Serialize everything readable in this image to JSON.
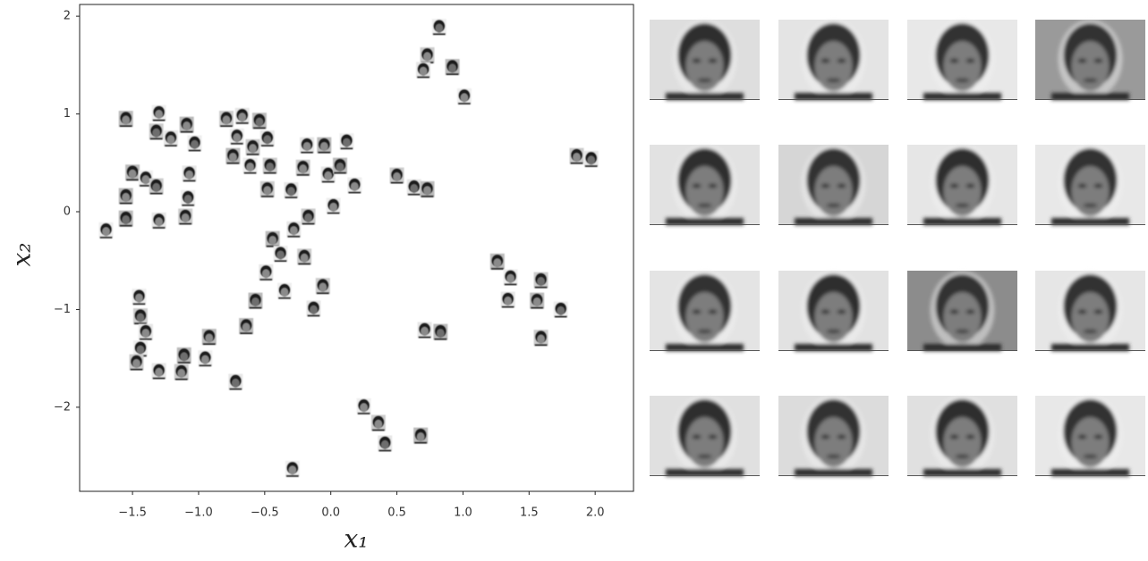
{
  "chart_data": {
    "type": "scatter",
    "x_label": "x₁",
    "y_label": "x₂",
    "xlim": [
      -1.9,
      2.29
    ],
    "ylim": [
      -2.86,
      2.12
    ],
    "xticks": [
      {
        "value": -1.5,
        "label": "−1.5"
      },
      {
        "value": -1.0,
        "label": "−1.0"
      },
      {
        "value": -0.5,
        "label": "−0.5"
      },
      {
        "value": 0,
        "label": "0.0"
      },
      0.5,
      {
        "value": 1,
        "label": "1.0"
      },
      1.5,
      {
        "value": 2,
        "label": "2.0"
      }
    ],
    "yticks": [
      {
        "value": -2,
        "label": "−2"
      },
      {
        "value": -1,
        "label": "−1"
      },
      0,
      1,
      2
    ],
    "x": [
      0.82,
      0.73,
      0.7,
      0.92,
      1.01,
      1.86,
      1.97,
      -1.55,
      -1.3,
      -1.32,
      -1.21,
      -1.09,
      -1.03,
      -0.79,
      -0.67,
      -0.54,
      -0.71,
      -0.59,
      -0.48,
      -0.74,
      -0.61,
      -0.46,
      -0.18,
      -0.05,
      0.12,
      -0.21,
      -0.02,
      0.07,
      0.18,
      -0.48,
      -0.3,
      -1.5,
      -1.4,
      -1.32,
      -1.07,
      -1.55,
      -1.08,
      -1.1,
      -1.3,
      -1.55,
      -1.7,
      0.5,
      0.63,
      0.73,
      0.02,
      -0.17,
      -0.28,
      -0.44,
      -0.38,
      -0.2,
      -0.49,
      -0.57,
      -0.35,
      -0.06,
      -0.13,
      -0.64,
      -1.45,
      -1.44,
      -1.4,
      -0.92,
      -1.44,
      -1.47,
      -1.3,
      -1.11,
      -0.95,
      -1.13,
      -0.72,
      1.26,
      1.36,
      1.59,
      1.34,
      1.56,
      1.74,
      1.59,
      0.71,
      0.83,
      0.25,
      0.36,
      0.41,
      0.68,
      -0.29
    ],
    "y": [
      1.89,
      1.6,
      1.45,
      1.48,
      1.18,
      0.57,
      0.54,
      0.95,
      1.01,
      0.82,
      0.75,
      0.89,
      0.7,
      0.95,
      0.98,
      0.93,
      0.77,
      0.66,
      0.75,
      0.57,
      0.47,
      0.47,
      0.68,
      0.68,
      0.72,
      0.45,
      0.38,
      0.47,
      0.27,
      0.23,
      0.22,
      0.4,
      0.34,
      0.26,
      0.39,
      0.16,
      0.14,
      -0.05,
      -0.09,
      -0.07,
      -0.19,
      0.37,
      0.25,
      0.23,
      0.06,
      -0.05,
      -0.18,
      -0.28,
      -0.43,
      -0.46,
      -0.62,
      -0.91,
      -0.81,
      -0.76,
      -0.99,
      -1.17,
      -0.87,
      -1.07,
      -1.23,
      -1.28,
      -1.4,
      -1.54,
      -1.63,
      -1.47,
      -1.5,
      -1.64,
      -1.74,
      -0.51,
      -0.67,
      -0.7,
      -0.9,
      -0.91,
      -1.0,
      -1.29,
      -1.21,
      -1.23,
      -1.99,
      -2.16,
      -2.37,
      -2.29,
      -2.63
    ]
  }
}
